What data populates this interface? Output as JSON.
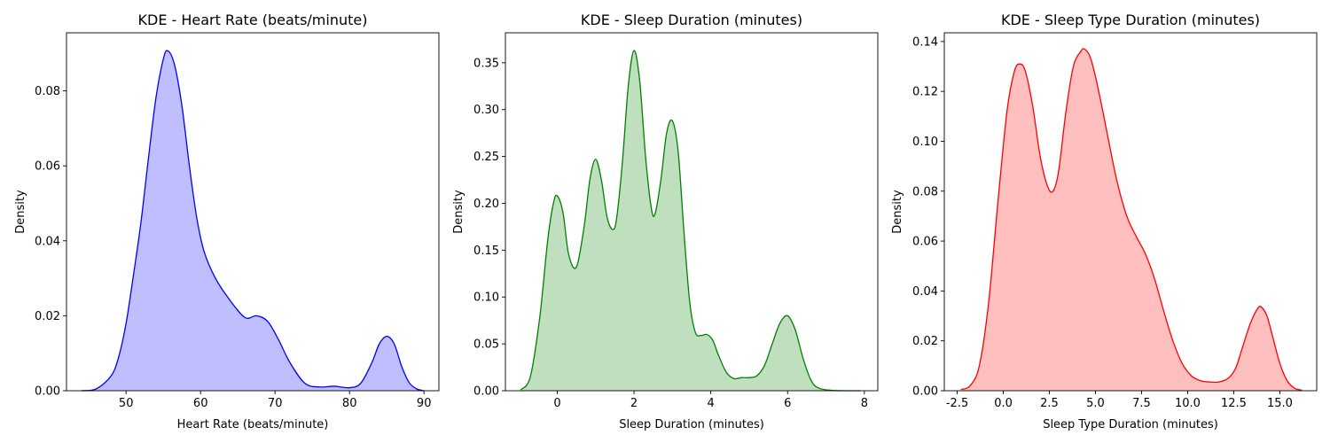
{
  "chart_data": [
    {
      "type": "area",
      "title": "KDE - Heart Rate (beats/minute)",
      "xlabel": "Heart Rate (beats/minute)",
      "ylabel": "Density",
      "color": "#0000ff",
      "fill": "#0000ff",
      "fill_opacity": 0.25,
      "xlim": [
        42,
        92
      ],
      "ylim": [
        0,
        0.0955
      ],
      "xticks": [
        50,
        60,
        70,
        80,
        90
      ],
      "xtick_labels": [
        "50",
        "60",
        "70",
        "80",
        "90"
      ],
      "yticks": [
        0.0,
        0.02,
        0.04,
        0.06,
        0.08
      ],
      "ytick_labels": [
        "0.00",
        "0.02",
        "0.04",
        "0.06",
        "0.08"
      ],
      "x": [
        44,
        46,
        48,
        49,
        50,
        51,
        52,
        53,
        54,
        55,
        55.6,
        56.5,
        57.5,
        58.5,
        59.5,
        60.5,
        62,
        64,
        66,
        67.5,
        69,
        70.5,
        72,
        74,
        76,
        78,
        80,
        81.5,
        83,
        84,
        85,
        86,
        87,
        88,
        89,
        90
      ],
      "y": [
        0.0,
        0.0005,
        0.004,
        0.009,
        0.018,
        0.031,
        0.045,
        0.062,
        0.078,
        0.0885,
        0.0907,
        0.087,
        0.076,
        0.06,
        0.046,
        0.037,
        0.03,
        0.024,
        0.0195,
        0.02,
        0.0185,
        0.0135,
        0.0075,
        0.002,
        0.001,
        0.0012,
        0.0008,
        0.002,
        0.0075,
        0.0125,
        0.0145,
        0.0125,
        0.0065,
        0.0022,
        0.0005,
        0.0
      ]
    },
    {
      "type": "area",
      "title": "KDE - Sleep Duration (minutes)",
      "xlabel": "Sleep Duration (minutes)",
      "ylabel": "Density",
      "color": "#008000",
      "fill": "#008000",
      "fill_opacity": 0.25,
      "xlim": [
        -1.35,
        8.35
      ],
      "ylim": [
        0,
        0.382
      ],
      "xticks": [
        0,
        2,
        4,
        6,
        8
      ],
      "xtick_labels": [
        "0",
        "2",
        "4",
        "6",
        "8"
      ],
      "yticks": [
        0.0,
        0.05,
        0.1,
        0.15,
        0.2,
        0.25,
        0.3,
        0.35
      ],
      "ytick_labels": [
        "0.00",
        "0.05",
        "0.10",
        "0.15",
        "0.20",
        "0.25",
        "0.30",
        "0.35"
      ],
      "x": [
        -0.95,
        -0.7,
        -0.45,
        -0.25,
        -0.1,
        0.0,
        0.15,
        0.3,
        0.5,
        0.7,
        0.85,
        1.0,
        1.15,
        1.3,
        1.45,
        1.55,
        1.7,
        1.85,
        2.0,
        2.15,
        2.3,
        2.45,
        2.55,
        2.7,
        2.85,
        3.0,
        3.15,
        3.3,
        3.45,
        3.6,
        3.75,
        3.9,
        4.05,
        4.2,
        4.4,
        4.6,
        4.8,
        5.0,
        5.2,
        5.4,
        5.6,
        5.8,
        6.0,
        6.2,
        6.4,
        6.6,
        6.8,
        7.2,
        7.9
      ],
      "y": [
        0.001,
        0.015,
        0.08,
        0.16,
        0.2,
        0.208,
        0.19,
        0.145,
        0.132,
        0.175,
        0.225,
        0.247,
        0.225,
        0.185,
        0.172,
        0.185,
        0.245,
        0.325,
        0.363,
        0.33,
        0.25,
        0.195,
        0.189,
        0.225,
        0.275,
        0.288,
        0.255,
        0.17,
        0.095,
        0.062,
        0.059,
        0.06,
        0.054,
        0.038,
        0.02,
        0.013,
        0.014,
        0.014,
        0.016,
        0.027,
        0.05,
        0.072,
        0.08,
        0.065,
        0.035,
        0.012,
        0.003,
        0.0003,
        0.0
      ]
    },
    {
      "type": "area",
      "title": "KDE - Sleep Type Duration (minutes)",
      "xlabel": "Sleep Type Duration (minutes)",
      "ylabel": "Density",
      "color": "#ff0000",
      "fill": "#ff0000",
      "fill_opacity": 0.25,
      "xlim": [
        -3.2,
        17.0
      ],
      "ylim": [
        0,
        0.1435
      ],
      "xticks": [
        -2.5,
        0.0,
        2.5,
        5.0,
        7.5,
        10.0,
        12.5,
        15.0
      ],
      "xtick_labels": [
        "-2.5",
        "0.0",
        "2.5",
        "5.0",
        "7.5",
        "10.0",
        "12.5",
        "15.0"
      ],
      "yticks": [
        0.0,
        0.02,
        0.04,
        0.06,
        0.08,
        0.1,
        0.12,
        0.14
      ],
      "ytick_labels": [
        "0.00",
        "0.02",
        "0.04",
        "0.06",
        "0.08",
        "0.10",
        "0.12",
        "0.14"
      ],
      "x": [
        -2.3,
        -1.8,
        -1.3,
        -0.8,
        -0.3,
        0.2,
        0.6,
        0.9,
        1.2,
        1.6,
        2.0,
        2.4,
        2.7,
        3.0,
        3.4,
        3.8,
        4.2,
        4.4,
        4.7,
        5.0,
        5.4,
        5.8,
        6.2,
        6.7,
        7.2,
        7.7,
        8.2,
        8.7,
        9.2,
        9.7,
        10.2,
        10.7,
        11.2,
        11.7,
        12.2,
        12.6,
        13.0,
        13.4,
        13.8,
        14.0,
        14.3,
        14.6,
        15.0,
        15.4,
        15.8,
        16.2
      ],
      "y": [
        0.0005,
        0.002,
        0.01,
        0.035,
        0.075,
        0.112,
        0.128,
        0.131,
        0.128,
        0.114,
        0.094,
        0.082,
        0.08,
        0.088,
        0.112,
        0.13,
        0.136,
        0.137,
        0.134,
        0.126,
        0.112,
        0.097,
        0.083,
        0.07,
        0.062,
        0.055,
        0.045,
        0.032,
        0.02,
        0.011,
        0.006,
        0.004,
        0.0035,
        0.0035,
        0.005,
        0.009,
        0.018,
        0.027,
        0.033,
        0.0335,
        0.03,
        0.022,
        0.011,
        0.004,
        0.001,
        0.0002
      ]
    }
  ]
}
